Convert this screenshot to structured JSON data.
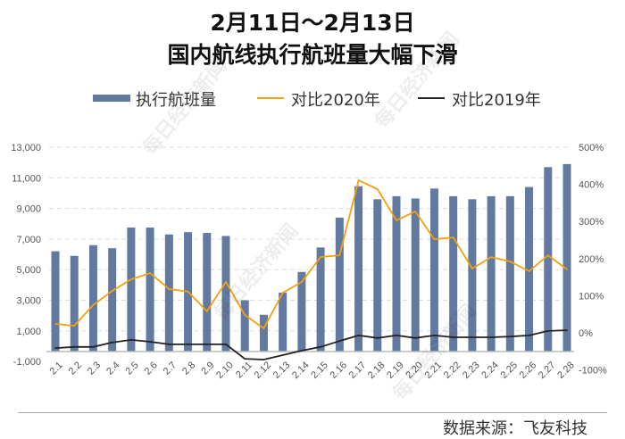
{
  "title_line1": "2月11日～2月13日",
  "title_line2": "国内航线执行航班量大幅下滑",
  "source": "数据来源：飞友科技",
  "watermark": "每日经济新闻",
  "colors": {
    "bars": "#6279a0",
    "vs2020": "#f5a00f",
    "vs2019": "#222222"
  },
  "chart_data": {
    "type": "bar+line",
    "categories": [
      "2.1",
      "2.2",
      "2.3",
      "2.4",
      "2.5",
      "2.6",
      "2.7",
      "2.8",
      "2.9",
      "2.10",
      "2.11",
      "2.12",
      "2.13",
      "2.14",
      "2.15",
      "2.16",
      "2.17",
      "2.18",
      "2.19",
      "2.20",
      "2.21",
      "2.22",
      "2.23",
      "2.24",
      "2.25",
      "2.26",
      "2.27",
      "2.28"
    ],
    "series": [
      {
        "name": "执行航班量",
        "type": "bar",
        "axis": "left",
        "values": [
          6200,
          5900,
          6600,
          6400,
          7750,
          7750,
          7300,
          7450,
          7400,
          7200,
          3000,
          2050,
          3500,
          4850,
          6450,
          8400,
          10450,
          9600,
          9800,
          9650,
          10300,
          9800,
          9600,
          9800,
          9800,
          10400,
          11700,
          11900
        ]
      },
      {
        "name": "对比2020年",
        "type": "line",
        "axis": "right",
        "unit": "%",
        "values": [
          24,
          19,
          75,
          113,
          144,
          161,
          118,
          111,
          58,
          137,
          48,
          12,
          108,
          137,
          204,
          209,
          411,
          387,
          303,
          327,
          252,
          257,
          173,
          204,
          192,
          166,
          209,
          171
        ]
      },
      {
        "name": "对比2019年",
        "type": "line",
        "axis": "right",
        "unit": "%",
        "values": [
          -41,
          -38,
          -38,
          -26,
          -19,
          -24,
          -31,
          -31,
          -31,
          -31,
          -70,
          -72,
          -60,
          -48,
          -38,
          -22,
          -7,
          -14,
          -7,
          -14,
          -7,
          -12,
          -12,
          -12,
          -10,
          -7,
          5,
          7
        ]
      }
    ],
    "left_axis": {
      "ylim": [
        -1000,
        13000
      ],
      "ticks": [
        "-1,000",
        "1,000",
        "3,000",
        "5,000",
        "7,000",
        "9,000",
        "11,000",
        "13,000"
      ]
    },
    "right_axis": {
      "ylim": [
        -100,
        500
      ],
      "ticks": [
        "-100%",
        "0%",
        "100%",
        "200%",
        "300%",
        "400%",
        "500%"
      ]
    },
    "grid": true,
    "legend": "top"
  }
}
